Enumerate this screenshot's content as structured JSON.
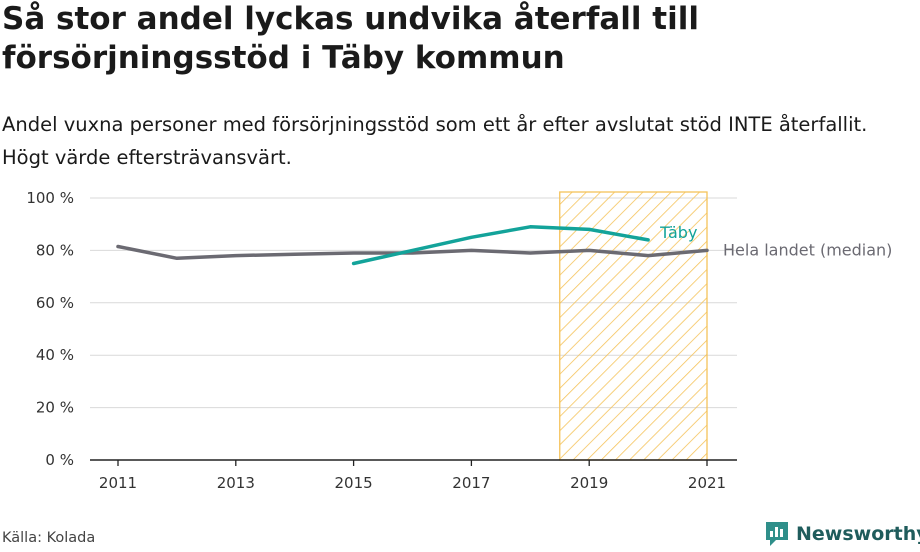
{
  "title": "Så stor andel lyckas undvika återfall till försörjningsstöd i Täby kommun",
  "subtitle": "Andel vuxna personer med försörjningsstöd som ett år efter avslutat stöd INTE återfallit. Högt värde eftersträvansvärt.",
  "source": "Källa: Kolada",
  "brand": "Newsworthy",
  "colors": {
    "taby": "#13a39a",
    "median": "#6b6a72",
    "highlight": "#f5c35a",
    "grid": "#d9d9d9",
    "brand": "#2f8f8a"
  },
  "chart_data": {
    "type": "line",
    "x_ticks": [
      "2011",
      "2013",
      "2015",
      "2017",
      "2019",
      "2021"
    ],
    "y_ticks": [
      "0 %",
      "20 %",
      "40 %",
      "60 %",
      "80 %",
      "100 %"
    ],
    "xlim": [
      2011,
      2021
    ],
    "ylim": [
      0,
      100
    ],
    "highlight_range": [
      2018.5,
      2021
    ],
    "grid": true,
    "series": [
      {
        "name": "Täby",
        "key": "taby",
        "x": [
          2015,
          2016,
          2017,
          2018,
          2019,
          2020
        ],
        "y": [
          75,
          80,
          85,
          89,
          88,
          84
        ]
      },
      {
        "name": "Hela landet (median)",
        "key": "median",
        "x": [
          2011,
          2012,
          2013,
          2014,
          2015,
          2016,
          2017,
          2018,
          2019,
          2020,
          2021
        ],
        "y": [
          81.5,
          77,
          78,
          78.5,
          79,
          79,
          80,
          79,
          80,
          78,
          80
        ]
      }
    ]
  }
}
